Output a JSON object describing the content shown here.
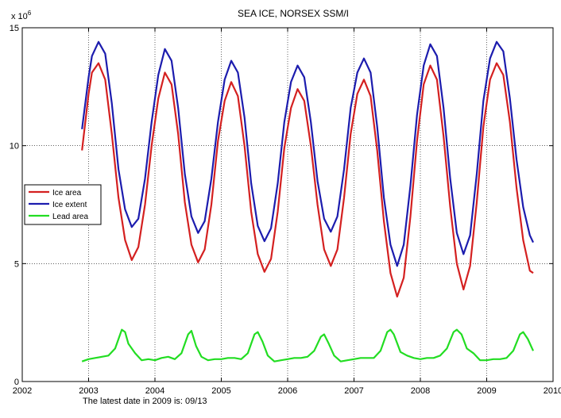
{
  "chart_data": {
    "type": "line",
    "title": "SEA ICE,  NORSEX SSM/I",
    "xlabel": "",
    "ylabel": "",
    "y_multiplier": "x 10",
    "y_multiplier_exp": "6",
    "xlim": [
      2002,
      2010
    ],
    "ylim": [
      0,
      15
    ],
    "x_ticks": [
      2002,
      2003,
      2004,
      2005,
      2006,
      2007,
      2008,
      2009,
      2010
    ],
    "y_ticks": [
      0,
      5,
      10,
      15
    ],
    "grid": true,
    "legend_position": "left",
    "series": [
      {
        "name": "Ice area",
        "color": "#d42020",
        "points": [
          [
            2002.9,
            9.8
          ],
          [
            2003.0,
            12.2
          ],
          [
            2003.05,
            13.1
          ],
          [
            2003.15,
            13.5
          ],
          [
            2003.25,
            12.8
          ],
          [
            2003.35,
            10.5
          ],
          [
            2003.45,
            7.8
          ],
          [
            2003.55,
            6.0
          ],
          [
            2003.65,
            5.15
          ],
          [
            2003.75,
            5.7
          ],
          [
            2003.85,
            7.5
          ],
          [
            2003.95,
            10.0
          ],
          [
            2004.05,
            12.0
          ],
          [
            2004.15,
            13.1
          ],
          [
            2004.25,
            12.6
          ],
          [
            2004.35,
            10.5
          ],
          [
            2004.45,
            7.6
          ],
          [
            2004.55,
            5.8
          ],
          [
            2004.65,
            5.05
          ],
          [
            2004.75,
            5.6
          ],
          [
            2004.85,
            7.5
          ],
          [
            2004.95,
            10.2
          ],
          [
            2005.05,
            11.9
          ],
          [
            2005.15,
            12.7
          ],
          [
            2005.25,
            12.1
          ],
          [
            2005.35,
            10.0
          ],
          [
            2005.45,
            7.2
          ],
          [
            2005.55,
            5.4
          ],
          [
            2005.65,
            4.65
          ],
          [
            2005.75,
            5.2
          ],
          [
            2005.85,
            7.2
          ],
          [
            2005.95,
            9.9
          ],
          [
            2006.05,
            11.6
          ],
          [
            2006.15,
            12.4
          ],
          [
            2006.25,
            11.9
          ],
          [
            2006.35,
            10.0
          ],
          [
            2006.45,
            7.5
          ],
          [
            2006.55,
            5.6
          ],
          [
            2006.65,
            4.9
          ],
          [
            2006.75,
            5.6
          ],
          [
            2006.85,
            7.8
          ],
          [
            2006.95,
            10.5
          ],
          [
            2007.05,
            12.2
          ],
          [
            2007.15,
            12.8
          ],
          [
            2007.25,
            12.1
          ],
          [
            2007.35,
            9.8
          ],
          [
            2007.45,
            6.8
          ],
          [
            2007.55,
            4.6
          ],
          [
            2007.65,
            3.6
          ],
          [
            2007.75,
            4.4
          ],
          [
            2007.85,
            7.0
          ],
          [
            2007.95,
            10.2
          ],
          [
            2008.05,
            12.6
          ],
          [
            2008.15,
            13.4
          ],
          [
            2008.25,
            12.8
          ],
          [
            2008.35,
            10.4
          ],
          [
            2008.45,
            7.4
          ],
          [
            2008.55,
            5.0
          ],
          [
            2008.65,
            3.9
          ],
          [
            2008.75,
            4.9
          ],
          [
            2008.85,
            7.6
          ],
          [
            2008.95,
            10.8
          ],
          [
            2009.05,
            12.8
          ],
          [
            2009.15,
            13.5
          ],
          [
            2009.25,
            13.0
          ],
          [
            2009.35,
            11.0
          ],
          [
            2009.45,
            8.2
          ],
          [
            2009.55,
            6.0
          ],
          [
            2009.65,
            4.7
          ],
          [
            2009.7,
            4.6
          ]
        ]
      },
      {
        "name": "Ice extent",
        "color": "#1c1cae",
        "points": [
          [
            2002.9,
            10.7
          ],
          [
            2003.0,
            12.9
          ],
          [
            2003.05,
            13.8
          ],
          [
            2003.15,
            14.4
          ],
          [
            2003.25,
            13.9
          ],
          [
            2003.35,
            11.8
          ],
          [
            2003.45,
            9.0
          ],
          [
            2003.55,
            7.3
          ],
          [
            2003.65,
            6.55
          ],
          [
            2003.75,
            6.9
          ],
          [
            2003.85,
            8.6
          ],
          [
            2003.95,
            11.0
          ],
          [
            2004.05,
            13.0
          ],
          [
            2004.15,
            14.1
          ],
          [
            2004.25,
            13.6
          ],
          [
            2004.35,
            11.6
          ],
          [
            2004.45,
            8.8
          ],
          [
            2004.55,
            7.0
          ],
          [
            2004.65,
            6.3
          ],
          [
            2004.75,
            6.8
          ],
          [
            2004.85,
            8.6
          ],
          [
            2004.95,
            11.0
          ],
          [
            2005.05,
            12.8
          ],
          [
            2005.15,
            13.6
          ],
          [
            2005.25,
            13.1
          ],
          [
            2005.35,
            11.2
          ],
          [
            2005.45,
            8.4
          ],
          [
            2005.55,
            6.6
          ],
          [
            2005.65,
            5.95
          ],
          [
            2005.75,
            6.5
          ],
          [
            2005.85,
            8.4
          ],
          [
            2005.95,
            11.0
          ],
          [
            2006.05,
            12.7
          ],
          [
            2006.15,
            13.4
          ],
          [
            2006.25,
            12.9
          ],
          [
            2006.35,
            11.0
          ],
          [
            2006.45,
            8.5
          ],
          [
            2006.55,
            6.9
          ],
          [
            2006.65,
            6.35
          ],
          [
            2006.75,
            7.0
          ],
          [
            2006.85,
            9.0
          ],
          [
            2006.95,
            11.6
          ],
          [
            2007.05,
            13.1
          ],
          [
            2007.15,
            13.7
          ],
          [
            2007.25,
            13.1
          ],
          [
            2007.35,
            10.8
          ],
          [
            2007.45,
            7.8
          ],
          [
            2007.55,
            5.8
          ],
          [
            2007.65,
            4.9
          ],
          [
            2007.75,
            5.8
          ],
          [
            2007.85,
            8.3
          ],
          [
            2007.95,
            11.3
          ],
          [
            2008.05,
            13.4
          ],
          [
            2008.15,
            14.3
          ],
          [
            2008.25,
            13.8
          ],
          [
            2008.35,
            11.6
          ],
          [
            2008.45,
            8.6
          ],
          [
            2008.55,
            6.3
          ],
          [
            2008.65,
            5.4
          ],
          [
            2008.75,
            6.2
          ],
          [
            2008.85,
            8.8
          ],
          [
            2008.95,
            11.9
          ],
          [
            2009.05,
            13.7
          ],
          [
            2009.15,
            14.4
          ],
          [
            2009.25,
            14.0
          ],
          [
            2009.35,
            12.0
          ],
          [
            2009.45,
            9.4
          ],
          [
            2009.55,
            7.4
          ],
          [
            2009.65,
            6.2
          ],
          [
            2009.7,
            5.9
          ]
        ]
      },
      {
        "name": "Lead area",
        "color": "#22dd22",
        "points": [
          [
            2002.9,
            0.85
          ],
          [
            2003.0,
            0.95
          ],
          [
            2003.1,
            1.0
          ],
          [
            2003.2,
            1.05
          ],
          [
            2003.3,
            1.1
          ],
          [
            2003.4,
            1.4
          ],
          [
            2003.5,
            2.2
          ],
          [
            2003.55,
            2.1
          ],
          [
            2003.6,
            1.6
          ],
          [
            2003.7,
            1.2
          ],
          [
            2003.8,
            0.9
          ],
          [
            2003.9,
            0.95
          ],
          [
            2004.0,
            0.9
          ],
          [
            2004.1,
            1.0
          ],
          [
            2004.2,
            1.05
          ],
          [
            2004.3,
            0.95
          ],
          [
            2004.4,
            1.2
          ],
          [
            2004.5,
            2.0
          ],
          [
            2004.55,
            2.15
          ],
          [
            2004.62,
            1.5
          ],
          [
            2004.7,
            1.05
          ],
          [
            2004.8,
            0.9
          ],
          [
            2004.9,
            0.95
          ],
          [
            2005.0,
            0.95
          ],
          [
            2005.1,
            1.0
          ],
          [
            2005.2,
            1.0
          ],
          [
            2005.3,
            0.95
          ],
          [
            2005.4,
            1.2
          ],
          [
            2005.5,
            2.0
          ],
          [
            2005.55,
            2.1
          ],
          [
            2005.62,
            1.7
          ],
          [
            2005.7,
            1.1
          ],
          [
            2005.8,
            0.85
          ],
          [
            2005.9,
            0.9
          ],
          [
            2006.0,
            0.95
          ],
          [
            2006.1,
            1.0
          ],
          [
            2006.2,
            1.0
          ],
          [
            2006.3,
            1.05
          ],
          [
            2006.4,
            1.3
          ],
          [
            2006.5,
            1.9
          ],
          [
            2006.55,
            2.0
          ],
          [
            2006.62,
            1.6
          ],
          [
            2006.7,
            1.1
          ],
          [
            2006.8,
            0.85
          ],
          [
            2006.9,
            0.9
          ],
          [
            2007.0,
            0.95
          ],
          [
            2007.1,
            1.0
          ],
          [
            2007.2,
            1.0
          ],
          [
            2007.3,
            1.0
          ],
          [
            2007.4,
            1.3
          ],
          [
            2007.5,
            2.1
          ],
          [
            2007.55,
            2.2
          ],
          [
            2007.6,
            2.0
          ],
          [
            2007.7,
            1.25
          ],
          [
            2007.8,
            1.1
          ],
          [
            2007.9,
            1.0
          ],
          [
            2008.0,
            0.95
          ],
          [
            2008.1,
            1.0
          ],
          [
            2008.2,
            1.0
          ],
          [
            2008.3,
            1.1
          ],
          [
            2008.4,
            1.4
          ],
          [
            2008.5,
            2.1
          ],
          [
            2008.55,
            2.2
          ],
          [
            2008.62,
            2.0
          ],
          [
            2008.7,
            1.4
          ],
          [
            2008.8,
            1.2
          ],
          [
            2008.9,
            0.9
          ],
          [
            2009.0,
            0.9
          ],
          [
            2009.1,
            0.95
          ],
          [
            2009.2,
            0.95
          ],
          [
            2009.3,
            1.0
          ],
          [
            2009.4,
            1.3
          ],
          [
            2009.5,
            2.0
          ],
          [
            2009.55,
            2.1
          ],
          [
            2009.62,
            1.8
          ],
          [
            2009.7,
            1.3
          ]
        ]
      }
    ]
  },
  "footer": {
    "note": "The latest date in 2009 is: 09/13"
  }
}
